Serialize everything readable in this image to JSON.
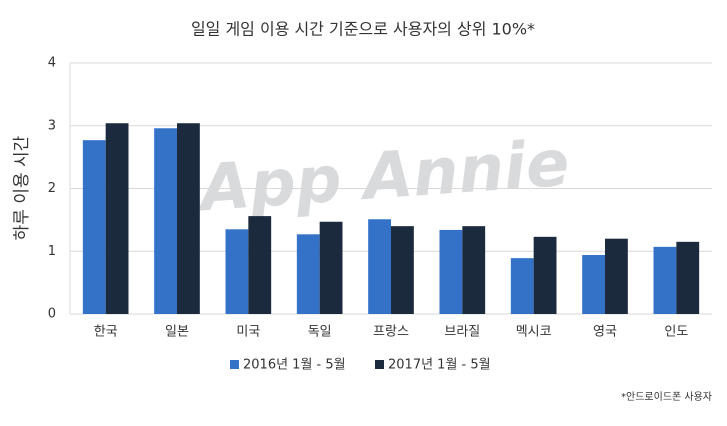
{
  "chart_data": {
    "type": "bar",
    "title": "일일 게임 이용 시간 기준으로 사용자의 상위 10%*",
    "y_label": "하루 이용 시간",
    "watermark": "App Annie",
    "footnote": "*안드로이드폰 사용자",
    "categories": [
      "한국",
      "일본",
      "미국",
      "독일",
      "프랑스",
      "브라질",
      "멕시코",
      "영국",
      "인도"
    ],
    "series": [
      {
        "name": "2016년 1월 - 5월",
        "color": "#3472c8",
        "values": [
          2.77,
          2.96,
          1.35,
          1.27,
          1.51,
          1.34,
          0.89,
          0.94,
          1.07
        ]
      },
      {
        "name": "2017년 1월 - 5월",
        "color": "#1c2a3e",
        "values": [
          3.04,
          3.04,
          1.56,
          1.47,
          1.4,
          1.4,
          1.23,
          1.2,
          1.15
        ]
      }
    ],
    "ylim": [
      0,
      4
    ],
    "yticks": [
      0,
      1,
      2,
      3,
      4
    ],
    "grid": true,
    "legend": "bottom"
  }
}
